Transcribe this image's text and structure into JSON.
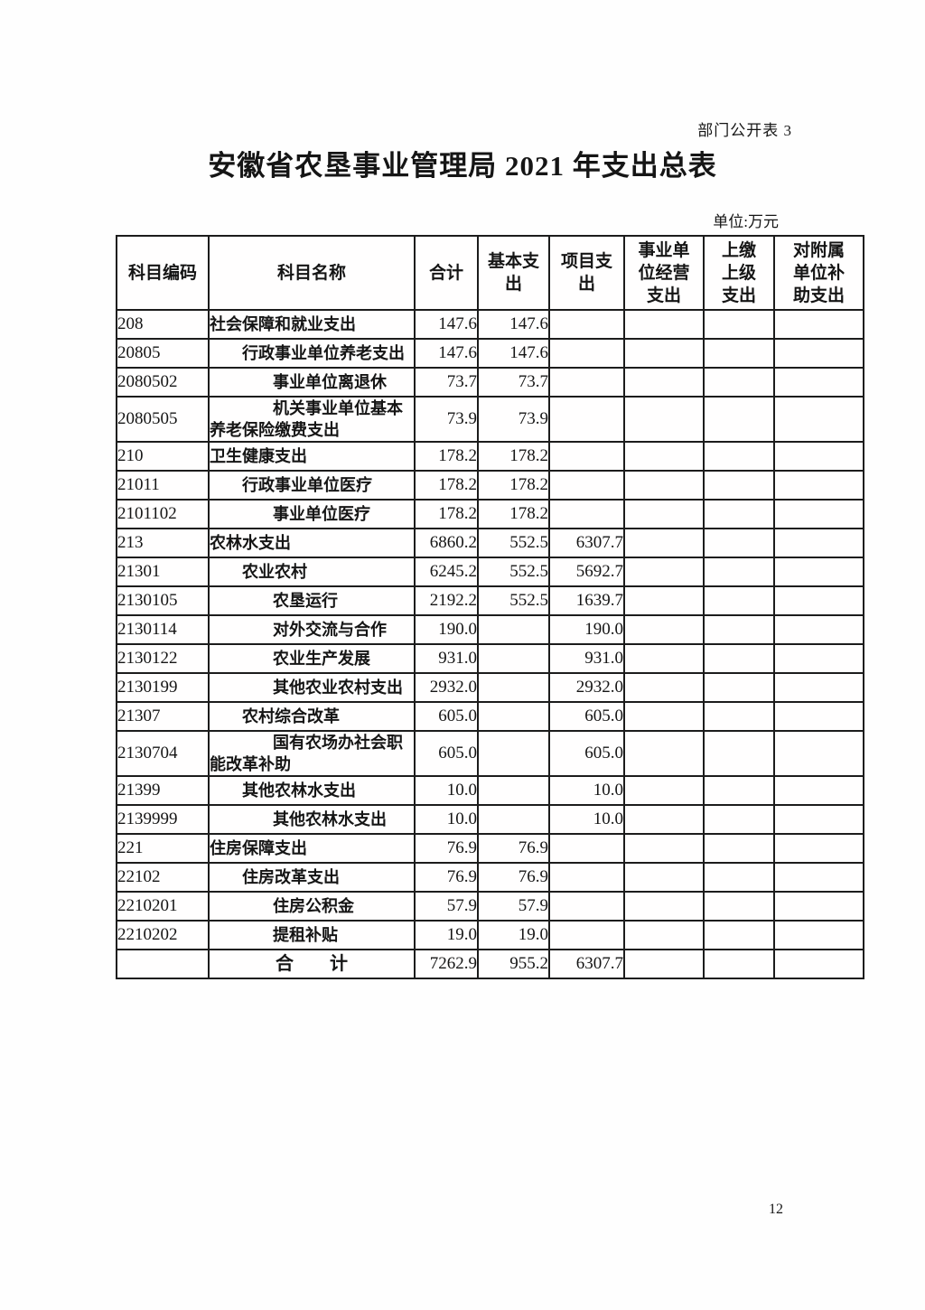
{
  "page": {
    "corner_label": "部门公开表 3",
    "title": "安徽省农垦事业管理局 2021 年支出总表",
    "unit_label": "单位:万元",
    "page_number": "12"
  },
  "table": {
    "headers": [
      {
        "key": "code",
        "label": "科目编码"
      },
      {
        "key": "name",
        "label": "科目名称"
      },
      {
        "key": "total",
        "label": "合计"
      },
      {
        "key": "basic",
        "label": "基本支\n出"
      },
      {
        "key": "project",
        "label": "项目支\n出"
      },
      {
        "key": "operating",
        "label": "事业单\n位经营\n支出"
      },
      {
        "key": "upper",
        "label": "上缴\n上级\n支出"
      },
      {
        "key": "subsidy",
        "label": "对附属\n单位补\n助支出"
      }
    ],
    "rows": [
      {
        "code": "208",
        "name": "社会保障和就业支出",
        "level": 1,
        "total": "147.6",
        "basic": "147.6",
        "project": "",
        "operating": "",
        "upper": "",
        "subsidy": ""
      },
      {
        "code": "20805",
        "name": "行政事业单位养老支出",
        "level": 2,
        "total": "147.6",
        "basic": "147.6",
        "project": "",
        "operating": "",
        "upper": "",
        "subsidy": ""
      },
      {
        "code": "2080502",
        "name": "事业单位离退休",
        "level": 3,
        "total": "73.7",
        "basic": "73.7",
        "project": "",
        "operating": "",
        "upper": "",
        "subsidy": ""
      },
      {
        "code": "2080505",
        "name": "机关事业单位基本养老保险缴费支出",
        "level": 3,
        "total": "73.9",
        "basic": "73.9",
        "project": "",
        "operating": "",
        "upper": "",
        "subsidy": ""
      },
      {
        "code": "210",
        "name": "卫生健康支出",
        "level": 1,
        "total": "178.2",
        "basic": "178.2",
        "project": "",
        "operating": "",
        "upper": "",
        "subsidy": ""
      },
      {
        "code": "21011",
        "name": "行政事业单位医疗",
        "level": 2,
        "total": "178.2",
        "basic": "178.2",
        "project": "",
        "operating": "",
        "upper": "",
        "subsidy": ""
      },
      {
        "code": "2101102",
        "name": "事业单位医疗",
        "level": 3,
        "total": "178.2",
        "basic": "178.2",
        "project": "",
        "operating": "",
        "upper": "",
        "subsidy": ""
      },
      {
        "code": "213",
        "name": "农林水支出",
        "level": 1,
        "total": "6860.2",
        "basic": "552.5",
        "project": "6307.7",
        "operating": "",
        "upper": "",
        "subsidy": ""
      },
      {
        "code": "21301",
        "name": "农业农村",
        "level": 2,
        "total": "6245.2",
        "basic": "552.5",
        "project": "5692.7",
        "operating": "",
        "upper": "",
        "subsidy": ""
      },
      {
        "code": "2130105",
        "name": "农垦运行",
        "level": 3,
        "total": "2192.2",
        "basic": "552.5",
        "project": "1639.7",
        "operating": "",
        "upper": "",
        "subsidy": ""
      },
      {
        "code": "2130114",
        "name": "对外交流与合作",
        "level": 3,
        "total": "190.0",
        "basic": "",
        "project": "190.0",
        "operating": "",
        "upper": "",
        "subsidy": ""
      },
      {
        "code": "2130122",
        "name": "农业生产发展",
        "level": 3,
        "total": "931.0",
        "basic": "",
        "project": "931.0",
        "operating": "",
        "upper": "",
        "subsidy": ""
      },
      {
        "code": "2130199",
        "name": "其他农业农村支出",
        "level": 3,
        "total": "2932.0",
        "basic": "",
        "project": "2932.0",
        "operating": "",
        "upper": "",
        "subsidy": ""
      },
      {
        "code": "21307",
        "name": "农村综合改革",
        "level": 2,
        "total": "605.0",
        "basic": "",
        "project": "605.0",
        "operating": "",
        "upper": "",
        "subsidy": ""
      },
      {
        "code": "2130704",
        "name": "国有农场办社会职能改革补助",
        "level": 3,
        "total": "605.0",
        "basic": "",
        "project": "605.0",
        "operating": "",
        "upper": "",
        "subsidy": ""
      },
      {
        "code": "21399",
        "name": "其他农林水支出",
        "level": 2,
        "total": "10.0",
        "basic": "",
        "project": "10.0",
        "operating": "",
        "upper": "",
        "subsidy": ""
      },
      {
        "code": "2139999",
        "name": "其他农林水支出",
        "level": 3,
        "total": "10.0",
        "basic": "",
        "project": "10.0",
        "operating": "",
        "upper": "",
        "subsidy": ""
      },
      {
        "code": "221",
        "name": "住房保障支出",
        "level": 1,
        "total": "76.9",
        "basic": "76.9",
        "project": "",
        "operating": "",
        "upper": "",
        "subsidy": ""
      },
      {
        "code": "22102",
        "name": "住房改革支出",
        "level": 2,
        "total": "76.9",
        "basic": "76.9",
        "project": "",
        "operating": "",
        "upper": "",
        "subsidy": ""
      },
      {
        "code": "2210201",
        "name": "住房公积金",
        "level": 3,
        "total": "57.9",
        "basic": "57.9",
        "project": "",
        "operating": "",
        "upper": "",
        "subsidy": ""
      },
      {
        "code": "2210202",
        "name": "提租补贴",
        "level": 3,
        "total": "19.0",
        "basic": "19.0",
        "project": "",
        "operating": "",
        "upper": "",
        "subsidy": ""
      }
    ],
    "total_row": {
      "code": "",
      "name": "合　　计",
      "total": "7262.9",
      "basic": "955.2",
      "project": "6307.7",
      "operating": "",
      "upper": "",
      "subsidy": ""
    }
  }
}
